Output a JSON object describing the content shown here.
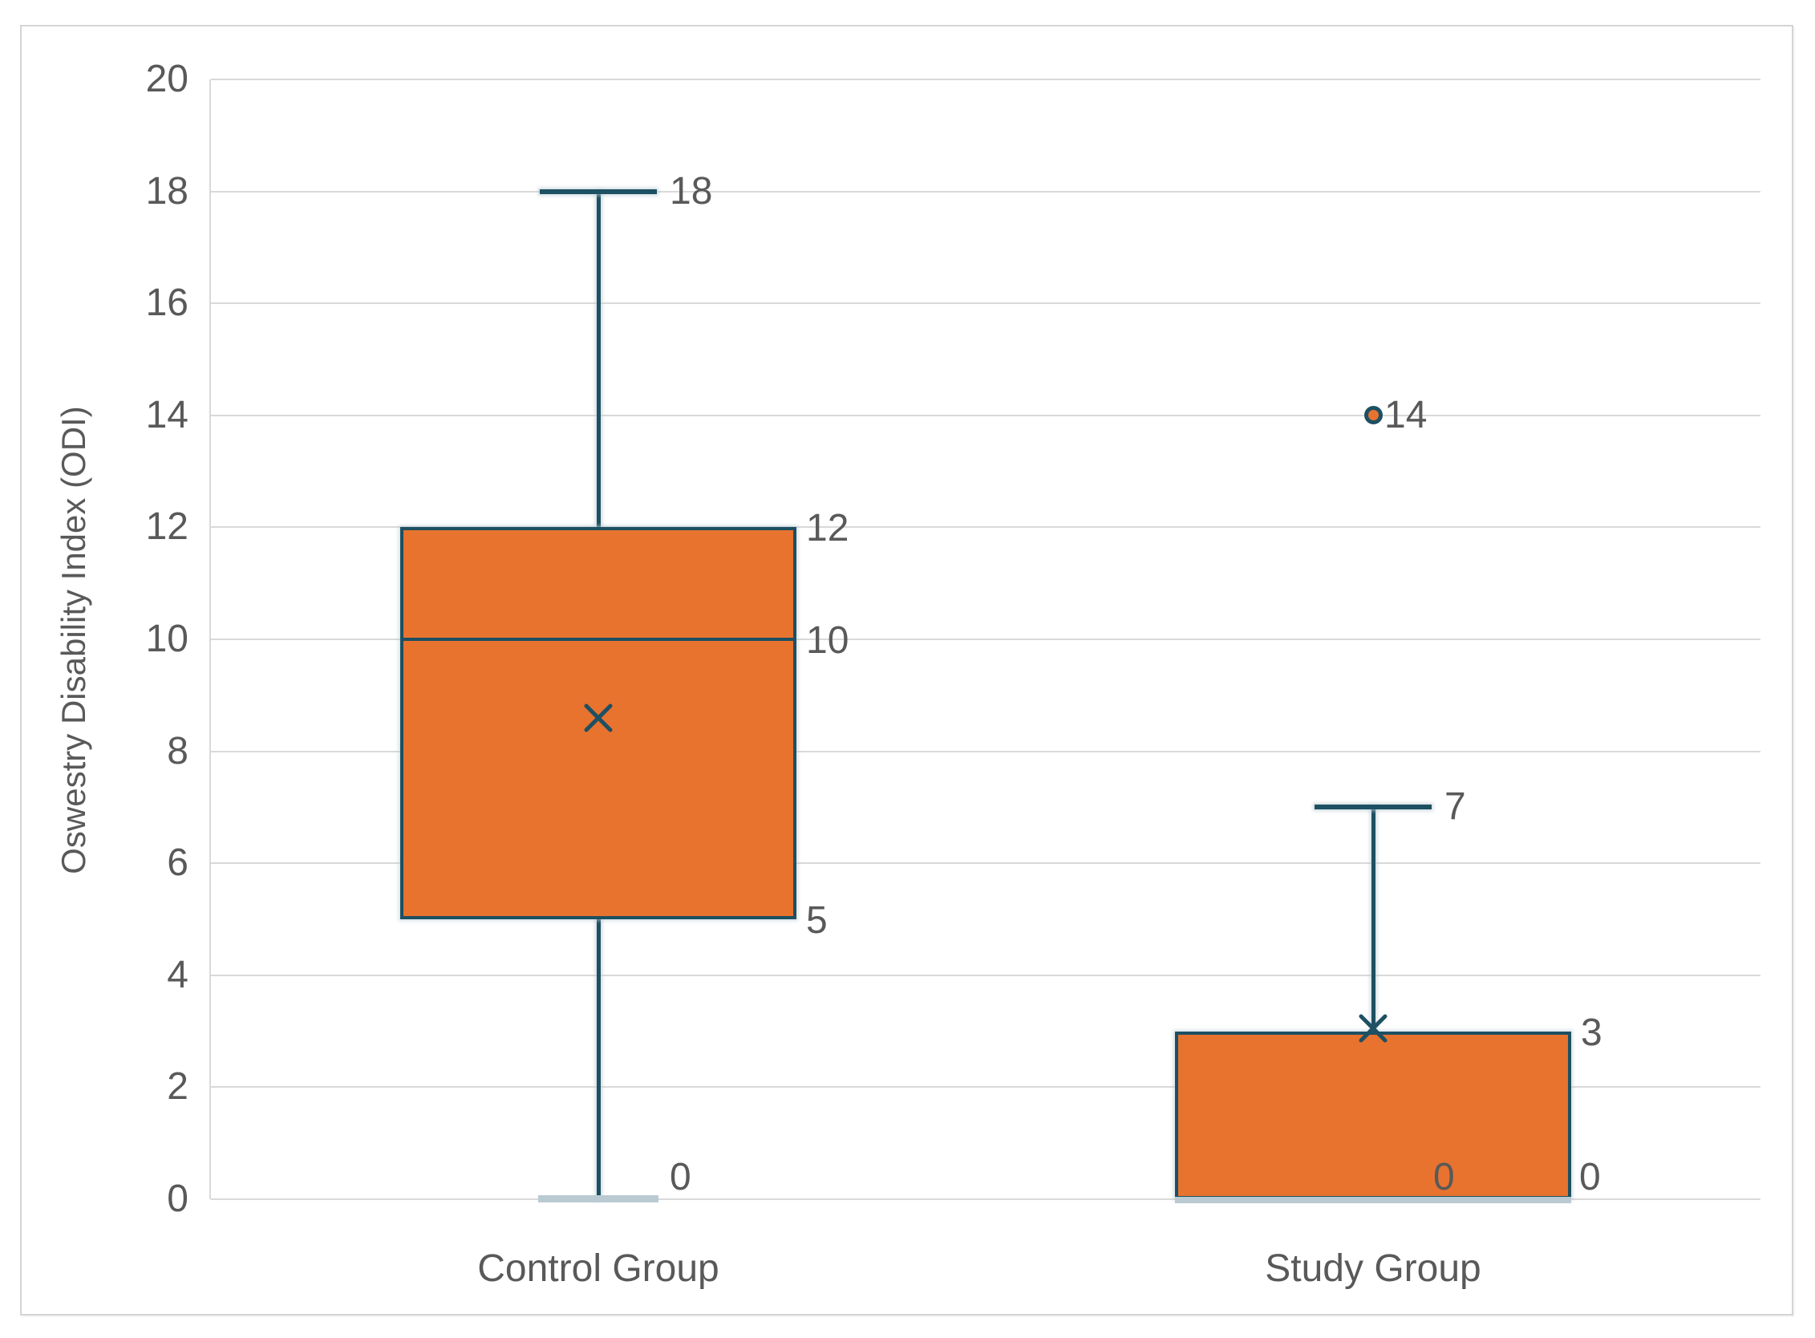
{
  "chart_data": {
    "type": "boxplot",
    "title": "",
    "ylabel": "Oswestry Disability Index (ODI)",
    "xlabel": "",
    "ylim": [
      0,
      20
    ],
    "ytick_step": 2,
    "grid": true,
    "legend": "none",
    "categories": [
      "Control Group",
      "Study Group"
    ],
    "series": [
      {
        "name": "Control Group",
        "min": 0,
        "q1": 5,
        "median": 10,
        "q3": 12,
        "max": 18,
        "mean": 8.6,
        "outliers": [],
        "data_labels": [
          {
            "text": "18",
            "value": 18,
            "placement": "cap-right"
          },
          {
            "text": "12",
            "value": 12,
            "placement": "box-right"
          },
          {
            "text": "10",
            "value": 10,
            "placement": "box-right"
          },
          {
            "text": "5",
            "value": 5,
            "placement": "box-right"
          },
          {
            "text": "0",
            "value": 0,
            "placement": "cap-right-above"
          }
        ]
      },
      {
        "name": "Study Group",
        "min": 0,
        "q1": 0,
        "median": 0,
        "q3": 3,
        "max": 7,
        "mean": 3.05,
        "outliers": [
          14
        ],
        "outlier_labels": [
          "14"
        ],
        "data_labels": [
          {
            "text": "14",
            "value": 14,
            "placement": "point-right"
          },
          {
            "text": "7",
            "value": 7,
            "placement": "cap-right"
          },
          {
            "text": "3",
            "value": 3,
            "placement": "box-right"
          },
          {
            "text": "0",
            "value": 0,
            "placement": "inside-box-above"
          },
          {
            "text": "0",
            "value": 0,
            "placement": "box-right-above"
          }
        ]
      }
    ],
    "colors": {
      "box_fill": "#E8732F",
      "line": "#1D5062",
      "light_line": "#BACAD3",
      "gridline": "#D9D9D9",
      "text": "#595959",
      "frame": "#D4D4D4"
    }
  }
}
